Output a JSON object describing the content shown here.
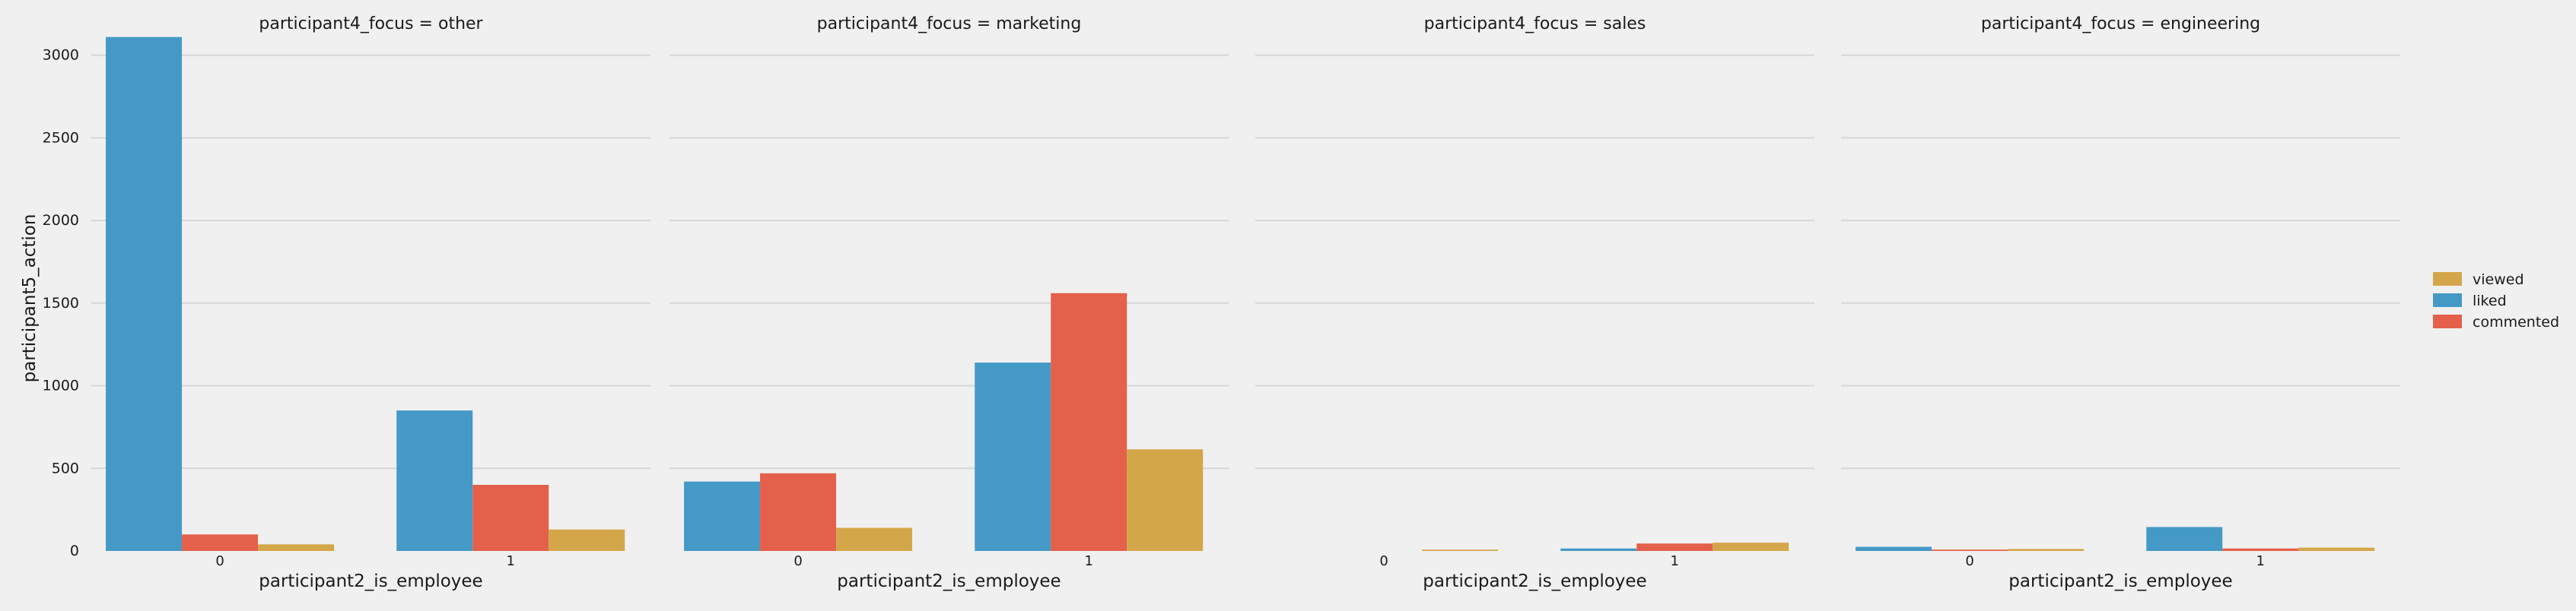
{
  "chart_data": {
    "type": "bar",
    "ylabel": "participant5_action",
    "ylim": [
      0,
      3150
    ],
    "yticks": [
      0,
      500,
      1000,
      1500,
      2000,
      2500,
      3000
    ],
    "grid": true,
    "legend": {
      "placement": "right",
      "entries": [
        {
          "label": "viewed",
          "color": "#d4a64a"
        },
        {
          "label": "liked",
          "color": "#4599c7"
        },
        {
          "label": "commented",
          "color": "#e4604a"
        }
      ]
    },
    "series_order": [
      "liked",
      "commented",
      "viewed"
    ],
    "facets": [
      {
        "title": "participant4_focus = other",
        "xlabel": "participant2_is_employee",
        "categories": [
          "0",
          "1"
        ],
        "series": [
          {
            "name": "liked",
            "values": [
              3110,
              850
            ]
          },
          {
            "name": "commented",
            "values": [
              100,
              400
            ]
          },
          {
            "name": "viewed",
            "values": [
              40,
              130
            ]
          }
        ]
      },
      {
        "title": "participant4_focus = marketing",
        "xlabel": "participant2_is_employee",
        "categories": [
          "0",
          "1"
        ],
        "series": [
          {
            "name": "liked",
            "values": [
              420,
              1140
            ]
          },
          {
            "name": "commented",
            "values": [
              470,
              1560
            ]
          },
          {
            "name": "viewed",
            "values": [
              140,
              615
            ]
          }
        ]
      },
      {
        "title": "participant4_focus = sales",
        "xlabel": "participant2_is_employee",
        "categories": [
          "0",
          "1"
        ],
        "series": [
          {
            "name": "liked",
            "values": [
              0,
              15
            ]
          },
          {
            "name": "commented",
            "values": [
              0,
              45
            ]
          },
          {
            "name": "viewed",
            "values": [
              8,
              50
            ]
          }
        ]
      },
      {
        "title": "participant4_focus = engineering",
        "xlabel": "participant2_is_employee",
        "categories": [
          "0",
          "1"
        ],
        "series": [
          {
            "name": "liked",
            "values": [
              25,
              145
            ]
          },
          {
            "name": "commented",
            "values": [
              8,
              15
            ]
          },
          {
            "name": "viewed",
            "values": [
              12,
              20
            ]
          }
        ]
      }
    ]
  }
}
